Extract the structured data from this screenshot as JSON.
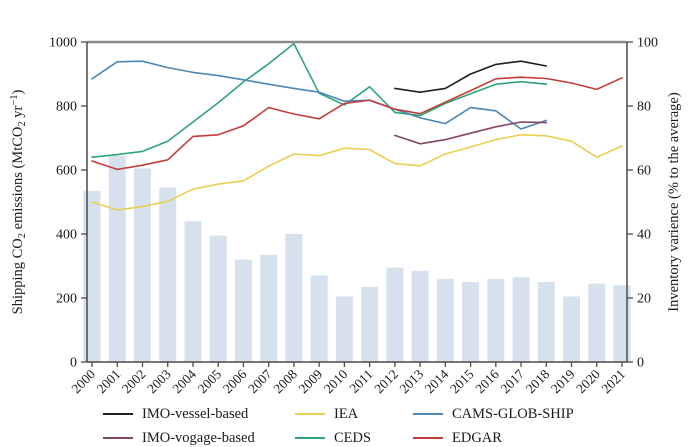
{
  "chart_data": {
    "type": "line+bar combo",
    "x": [
      "2000",
      "2001",
      "2002",
      "2003",
      "2004",
      "2005",
      "2006",
      "2007",
      "2008",
      "2009",
      "2010",
      "2011",
      "2012",
      "2013",
      "2014",
      "2015",
      "2016",
      "2017",
      "2018",
      "2019",
      "2020",
      "2021"
    ],
    "left_axis": {
      "label_parts": [
        {
          "t": "Shipping CO"
        },
        {
          "t": "2",
          "style": "sub"
        },
        {
          "t": " emissions (MtCO"
        },
        {
          "t": "2",
          "style": "sub"
        },
        {
          "t": " yr"
        },
        {
          "t": "−1",
          "style": "sup"
        },
        {
          "t": ")"
        }
      ],
      "label_plain": "Shipping CO2 emissions (MtCO2 yr-1)",
      "range": [
        0,
        1000
      ],
      "ticks": [
        0,
        200,
        400,
        600,
        800,
        1000
      ]
    },
    "right_axis": {
      "label": "Inventory varience (% to the average)",
      "range": [
        0,
        100
      ],
      "ticks": [
        0,
        20,
        40,
        60,
        80,
        100
      ]
    },
    "bar_series": {
      "name": "inventory-variance-bars",
      "axis": "right",
      "color": "#d7e1ee",
      "values_percent": [
        53.5,
        64.5,
        60.5,
        54.5,
        44,
        39.5,
        32,
        33.5,
        40,
        27,
        20.5,
        23.5,
        29.5,
        28.5,
        26,
        25,
        26,
        26.5,
        25,
        20.5,
        24.5,
        24
      ]
    },
    "series": [
      {
        "name": "IEA",
        "color": "#e8cf4f",
        "values": [
          500,
          475,
          486,
          502,
          540,
          556,
          566,
          612,
          650,
          645,
          668,
          664,
          620,
          613,
          650,
          672,
          695,
          710,
          707,
          690,
          640,
          675
        ]
      },
      {
        "name": "CEDS",
        "color": "#2ea47b",
        "values": [
          640,
          648,
          658,
          690,
          750,
          810,
          875,
          932,
          995,
          840,
          803,
          860,
          780,
          770,
          808,
          838,
          868,
          876,
          868,
          null,
          null,
          null
        ]
      },
      {
        "name": "CAMS-GLOB-SHIP",
        "color": "#4d87b5",
        "values": [
          885,
          938,
          940,
          920,
          905,
          895,
          882,
          868,
          855,
          843,
          815,
          818,
          790,
          763,
          745,
          795,
          785,
          728,
          755,
          null,
          null,
          null
        ]
      },
      {
        "name": "EDGAR",
        "color": "#c43c3c",
        "values": [
          628,
          602,
          615,
          632,
          705,
          710,
          738,
          795,
          775,
          760,
          808,
          818,
          790,
          776,
          812,
          848,
          885,
          890,
          886,
          872,
          852,
          888
        ]
      },
      {
        "name": "IMO-vogage-based",
        "color": "#834562",
        "values": [
          null,
          null,
          null,
          null,
          null,
          null,
          null,
          null,
          null,
          null,
          null,
          null,
          708,
          682,
          695,
          715,
          735,
          750,
          748,
          null,
          null,
          null
        ]
      },
      {
        "name": "IMO-vessel-based",
        "color": "#1f1f1f",
        "values": [
          null,
          null,
          null,
          null,
          null,
          null,
          null,
          null,
          null,
          null,
          null,
          null,
          855,
          843,
          855,
          900,
          930,
          940,
          925,
          null,
          null,
          null
        ]
      }
    ],
    "legend": {
      "items": [
        {
          "label": "IMO-vessel-based",
          "color": "#1f1f1f"
        },
        {
          "label": "IEA",
          "color": "#e8cf4f"
        },
        {
          "label": "CAMS-GLOB-SHIP",
          "color": "#4d87b5"
        },
        {
          "label": "IMO-vogage-based",
          "color": "#834562"
        },
        {
          "label": "CEDS",
          "color": "#2ea47b"
        },
        {
          "label": "EDGAR",
          "color": "#c43c3c"
        }
      ]
    },
    "frame_color": "#4a4a4a",
    "top_frame_color": "#8c8c8c"
  }
}
